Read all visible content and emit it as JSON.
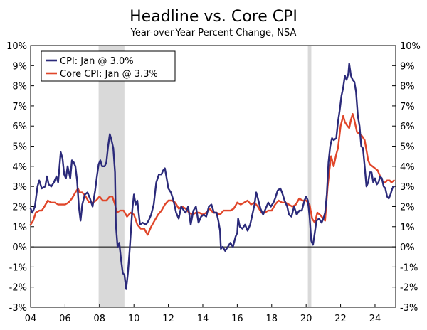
{
  "chart_data": {
    "type": "line",
    "title": "Headline vs. Core CPI",
    "subtitle": "Year-over-Year Percent Change, NSA",
    "xlabel": "",
    "ylabel": "",
    "xlim": [
      2004.0,
      2025.2
    ],
    "ylim": [
      -3,
      10
    ],
    "x_ticks": [
      2004,
      2006,
      2008,
      2010,
      2012,
      2014,
      2016,
      2018,
      2020,
      2022,
      2024
    ],
    "x_tick_labels": [
      "04",
      "06",
      "08",
      "10",
      "12",
      "14",
      "16",
      "18",
      "20",
      "22",
      "24"
    ],
    "y_ticks": [
      -3,
      -2,
      -1,
      0,
      1,
      2,
      3,
      4,
      5,
      6,
      7,
      8,
      9,
      10
    ],
    "y_tick_labels": [
      "-3%",
      "-2%",
      "-1%",
      "0%",
      "1%",
      "2%",
      "3%",
      "4%",
      "5%",
      "6%",
      "7%",
      "8%",
      "9%",
      "10%"
    ],
    "grid": false,
    "zero_line": true,
    "recession_shading": [
      {
        "start": 2007.95,
        "end": 2009.45
      },
      {
        "start": 2020.1,
        "end": 2020.3
      }
    ],
    "legend_position": "top-left",
    "series": [
      {
        "name": "CPI: Jan @ 3.0%",
        "color": "#2b2a7a",
        "points": [
          [
            2004.0,
            1.9
          ],
          [
            2004.1,
            1.7
          ],
          [
            2004.25,
            2.0
          ],
          [
            2004.4,
            3.0
          ],
          [
            2004.5,
            3.3
          ],
          [
            2004.65,
            2.9
          ],
          [
            2004.85,
            3.0
          ],
          [
            2004.95,
            3.5
          ],
          [
            2005.05,
            3.1
          ],
          [
            2005.2,
            3.0
          ],
          [
            2005.35,
            3.2
          ],
          [
            2005.5,
            3.5
          ],
          [
            2005.6,
            3.2
          ],
          [
            2005.75,
            4.7
          ],
          [
            2005.85,
            4.4
          ],
          [
            2005.95,
            3.6
          ],
          [
            2006.05,
            3.4
          ],
          [
            2006.15,
            4.0
          ],
          [
            2006.3,
            3.4
          ],
          [
            2006.4,
            4.3
          ],
          [
            2006.5,
            4.2
          ],
          [
            2006.6,
            4.0
          ],
          [
            2006.7,
            3.3
          ],
          [
            2006.8,
            2.0
          ],
          [
            2006.9,
            1.3
          ],
          [
            2007.0,
            2.1
          ],
          [
            2007.15,
            2.6
          ],
          [
            2007.3,
            2.7
          ],
          [
            2007.45,
            2.4
          ],
          [
            2007.6,
            2.0
          ],
          [
            2007.75,
            2.8
          ],
          [
            2007.85,
            3.5
          ],
          [
            2007.95,
            4.1
          ],
          [
            2008.05,
            4.3
          ],
          [
            2008.15,
            4.0
          ],
          [
            2008.3,
            4.0
          ],
          [
            2008.4,
            4.2
          ],
          [
            2008.5,
            5.0
          ],
          [
            2008.6,
            5.6
          ],
          [
            2008.7,
            5.3
          ],
          [
            2008.8,
            4.9
          ],
          [
            2008.9,
            3.7
          ],
          [
            2008.95,
            1.1
          ],
          [
            2009.05,
            0.0
          ],
          [
            2009.15,
            0.2
          ],
          [
            2009.25,
            -0.6
          ],
          [
            2009.35,
            -1.3
          ],
          [
            2009.45,
            -1.4
          ],
          [
            2009.55,
            -2.1
          ],
          [
            2009.65,
            -1.3
          ],
          [
            2009.75,
            -0.2
          ],
          [
            2009.9,
            1.8
          ],
          [
            2010.0,
            2.6
          ],
          [
            2010.1,
            2.1
          ],
          [
            2010.2,
            2.3
          ],
          [
            2010.35,
            1.1
          ],
          [
            2010.5,
            1.2
          ],
          [
            2010.7,
            1.1
          ],
          [
            2010.85,
            1.3
          ],
          [
            2011.0,
            1.6
          ],
          [
            2011.15,
            2.1
          ],
          [
            2011.3,
            3.2
          ],
          [
            2011.45,
            3.6
          ],
          [
            2011.6,
            3.6
          ],
          [
            2011.7,
            3.8
          ],
          [
            2011.8,
            3.9
          ],
          [
            2011.9,
            3.4
          ],
          [
            2012.0,
            2.9
          ],
          [
            2012.15,
            2.7
          ],
          [
            2012.3,
            2.3
          ],
          [
            2012.45,
            1.7
          ],
          [
            2012.6,
            1.4
          ],
          [
            2012.75,
            2.0
          ],
          [
            2012.9,
            1.8
          ],
          [
            2013.0,
            1.7
          ],
          [
            2013.15,
            2.0
          ],
          [
            2013.3,
            1.1
          ],
          [
            2013.45,
            1.8
          ],
          [
            2013.6,
            2.0
          ],
          [
            2013.75,
            1.2
          ],
          [
            2013.9,
            1.5
          ],
          [
            2014.05,
            1.6
          ],
          [
            2014.2,
            1.5
          ],
          [
            2014.35,
            2.0
          ],
          [
            2014.5,
            2.1
          ],
          [
            2014.65,
            1.7
          ],
          [
            2014.8,
            1.7
          ],
          [
            2014.9,
            1.3
          ],
          [
            2015.0,
            0.8
          ],
          [
            2015.05,
            -0.1
          ],
          [
            2015.15,
            0.0
          ],
          [
            2015.3,
            -0.2
          ],
          [
            2015.45,
            0.0
          ],
          [
            2015.6,
            0.2
          ],
          [
            2015.75,
            0.0
          ],
          [
            2015.9,
            0.5
          ],
          [
            2016.0,
            0.7
          ],
          [
            2016.05,
            1.4
          ],
          [
            2016.15,
            1.0
          ],
          [
            2016.3,
            0.9
          ],
          [
            2016.45,
            1.1
          ],
          [
            2016.6,
            0.8
          ],
          [
            2016.75,
            1.1
          ],
          [
            2016.9,
            1.7
          ],
          [
            2017.0,
            2.1
          ],
          [
            2017.1,
            2.7
          ],
          [
            2017.2,
            2.4
          ],
          [
            2017.35,
            1.9
          ],
          [
            2017.5,
            1.6
          ],
          [
            2017.65,
            1.9
          ],
          [
            2017.8,
            2.2
          ],
          [
            2017.95,
            2.0
          ],
          [
            2018.1,
            2.2
          ],
          [
            2018.2,
            2.4
          ],
          [
            2018.35,
            2.8
          ],
          [
            2018.5,
            2.9
          ],
          [
            2018.6,
            2.7
          ],
          [
            2018.75,
            2.3
          ],
          [
            2018.9,
            2.0
          ],
          [
            2019.0,
            1.6
          ],
          [
            2019.15,
            1.5
          ],
          [
            2019.3,
            2.0
          ],
          [
            2019.45,
            1.6
          ],
          [
            2019.6,
            1.8
          ],
          [
            2019.75,
            1.8
          ],
          [
            2019.9,
            2.3
          ],
          [
            2020.0,
            2.5
          ],
          [
            2020.1,
            2.3
          ],
          [
            2020.2,
            1.5
          ],
          [
            2020.3,
            0.3
          ],
          [
            2020.4,
            0.1
          ],
          [
            2020.5,
            0.7
          ],
          [
            2020.6,
            1.3
          ],
          [
            2020.75,
            1.4
          ],
          [
            2020.9,
            1.2
          ],
          [
            2021.0,
            1.4
          ],
          [
            2021.1,
            1.7
          ],
          [
            2021.2,
            2.6
          ],
          [
            2021.3,
            4.2
          ],
          [
            2021.4,
            5.0
          ],
          [
            2021.5,
            5.4
          ],
          [
            2021.6,
            5.3
          ],
          [
            2021.75,
            5.4
          ],
          [
            2021.85,
            6.2
          ],
          [
            2021.95,
            6.8
          ],
          [
            2022.05,
            7.5
          ],
          [
            2022.15,
            7.9
          ],
          [
            2022.25,
            8.5
          ],
          [
            2022.35,
            8.3
          ],
          [
            2022.45,
            8.6
          ],
          [
            2022.5,
            9.1
          ],
          [
            2022.6,
            8.5
          ],
          [
            2022.7,
            8.3
          ],
          [
            2022.8,
            8.2
          ],
          [
            2022.9,
            7.7
          ],
          [
            2023.0,
            6.5
          ],
          [
            2023.1,
            6.0
          ],
          [
            2023.2,
            5.0
          ],
          [
            2023.3,
            4.9
          ],
          [
            2023.4,
            4.0
          ],
          [
            2023.5,
            3.0
          ],
          [
            2023.6,
            3.2
          ],
          [
            2023.7,
            3.7
          ],
          [
            2023.8,
            3.7
          ],
          [
            2023.9,
            3.2
          ],
          [
            2024.0,
            3.4
          ],
          [
            2024.1,
            3.1
          ],
          [
            2024.2,
            3.2
          ],
          [
            2024.3,
            3.5
          ],
          [
            2024.4,
            3.4
          ],
          [
            2024.5,
            3.0
          ],
          [
            2024.6,
            2.9
          ],
          [
            2024.7,
            2.5
          ],
          [
            2024.8,
            2.4
          ],
          [
            2024.9,
            2.6
          ],
          [
            2025.0,
            2.9
          ],
          [
            2025.1,
            3.0
          ]
        ]
      },
      {
        "name": "Core CPI: Jan @ 3.3%",
        "color": "#e0462a",
        "points": [
          [
            2004.0,
            1.1
          ],
          [
            2004.15,
            1.3
          ],
          [
            2004.3,
            1.7
          ],
          [
            2004.5,
            1.8
          ],
          [
            2004.65,
            1.8
          ],
          [
            2004.8,
            2.0
          ],
          [
            2005.0,
            2.3
          ],
          [
            2005.2,
            2.2
          ],
          [
            2005.4,
            2.2
          ],
          [
            2005.6,
            2.1
          ],
          [
            2005.8,
            2.1
          ],
          [
            2006.0,
            2.1
          ],
          [
            2006.2,
            2.2
          ],
          [
            2006.4,
            2.4
          ],
          [
            2006.6,
            2.7
          ],
          [
            2006.75,
            2.9
          ],
          [
            2006.85,
            2.7
          ],
          [
            2007.0,
            2.7
          ],
          [
            2007.2,
            2.5
          ],
          [
            2007.4,
            2.2
          ],
          [
            2007.6,
            2.2
          ],
          [
            2007.8,
            2.3
          ],
          [
            2008.0,
            2.5
          ],
          [
            2008.2,
            2.3
          ],
          [
            2008.4,
            2.3
          ],
          [
            2008.6,
            2.5
          ],
          [
            2008.75,
            2.5
          ],
          [
            2008.9,
            2.1
          ],
          [
            2009.0,
            1.7
          ],
          [
            2009.2,
            1.8
          ],
          [
            2009.4,
            1.8
          ],
          [
            2009.6,
            1.5
          ],
          [
            2009.8,
            1.7
          ],
          [
            2010.0,
            1.6
          ],
          [
            2010.2,
            1.1
          ],
          [
            2010.4,
            0.9
          ],
          [
            2010.6,
            0.9
          ],
          [
            2010.8,
            0.6
          ],
          [
            2011.0,
            1.0
          ],
          [
            2011.2,
            1.3
          ],
          [
            2011.4,
            1.6
          ],
          [
            2011.6,
            1.8
          ],
          [
            2011.8,
            2.1
          ],
          [
            2012.0,
            2.3
          ],
          [
            2012.2,
            2.3
          ],
          [
            2012.4,
            2.2
          ],
          [
            2012.6,
            1.9
          ],
          [
            2012.8,
            2.0
          ],
          [
            2013.0,
            1.9
          ],
          [
            2013.2,
            1.7
          ],
          [
            2013.4,
            1.6
          ],
          [
            2013.6,
            1.7
          ],
          [
            2013.8,
            1.7
          ],
          [
            2014.0,
            1.6
          ],
          [
            2014.2,
            1.7
          ],
          [
            2014.4,
            1.9
          ],
          [
            2014.6,
            1.7
          ],
          [
            2014.8,
            1.7
          ],
          [
            2015.0,
            1.6
          ],
          [
            2015.2,
            1.8
          ],
          [
            2015.4,
            1.8
          ],
          [
            2015.6,
            1.8
          ],
          [
            2015.8,
            1.9
          ],
          [
            2016.0,
            2.2
          ],
          [
            2016.2,
            2.1
          ],
          [
            2016.4,
            2.2
          ],
          [
            2016.6,
            2.3
          ],
          [
            2016.8,
            2.1
          ],
          [
            2017.0,
            2.2
          ],
          [
            2017.2,
            2.0
          ],
          [
            2017.4,
            1.7
          ],
          [
            2017.6,
            1.7
          ],
          [
            2017.8,
            1.8
          ],
          [
            2018.0,
            1.8
          ],
          [
            2018.2,
            2.1
          ],
          [
            2018.4,
            2.3
          ],
          [
            2018.6,
            2.2
          ],
          [
            2018.8,
            2.2
          ],
          [
            2019.0,
            2.1
          ],
          [
            2019.2,
            2.0
          ],
          [
            2019.4,
            2.1
          ],
          [
            2019.6,
            2.4
          ],
          [
            2019.8,
            2.3
          ],
          [
            2020.0,
            2.3
          ],
          [
            2020.2,
            2.1
          ],
          [
            2020.35,
            1.4
          ],
          [
            2020.5,
            1.2
          ],
          [
            2020.65,
            1.7
          ],
          [
            2020.8,
            1.6
          ],
          [
            2021.0,
            1.4
          ],
          [
            2021.1,
            1.3
          ],
          [
            2021.25,
            3.0
          ],
          [
            2021.35,
            3.8
          ],
          [
            2021.45,
            4.5
          ],
          [
            2021.6,
            4.0
          ],
          [
            2021.75,
            4.6
          ],
          [
            2021.85,
            4.9
          ],
          [
            2022.0,
            6.0
          ],
          [
            2022.15,
            6.5
          ],
          [
            2022.25,
            6.2
          ],
          [
            2022.4,
            6.0
          ],
          [
            2022.5,
            5.9
          ],
          [
            2022.6,
            6.3
          ],
          [
            2022.7,
            6.6
          ],
          [
            2022.8,
            6.3
          ],
          [
            2022.95,
            5.7
          ],
          [
            2023.1,
            5.6
          ],
          [
            2023.25,
            5.5
          ],
          [
            2023.4,
            5.3
          ],
          [
            2023.5,
            4.8
          ],
          [
            2023.6,
            4.3
          ],
          [
            2023.7,
            4.1
          ],
          [
            2023.85,
            4.0
          ],
          [
            2024.0,
            3.9
          ],
          [
            2024.15,
            3.8
          ],
          [
            2024.25,
            3.6
          ],
          [
            2024.4,
            3.3
          ],
          [
            2024.5,
            3.2
          ],
          [
            2024.6,
            3.2
          ],
          [
            2024.7,
            3.3
          ],
          [
            2024.85,
            3.3
          ],
          [
            2024.95,
            3.2
          ],
          [
            2025.1,
            3.3
          ]
        ]
      }
    ]
  }
}
